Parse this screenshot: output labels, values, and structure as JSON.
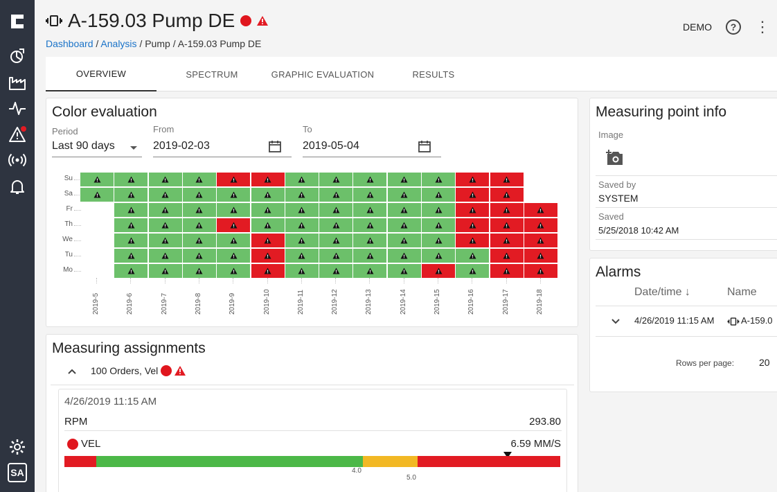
{
  "header": {
    "title": "A-159.03 Pump DE",
    "breadcrumb": {
      "dashboard": "Dashboard",
      "sep1": "/",
      "analysis": "Analysis",
      "sep2": "/",
      "pump": "Pump",
      "sep3": "/",
      "current": "A-159.03 Pump DE"
    },
    "demo_label": "DEMO",
    "help_label": "?"
  },
  "colors": {
    "red": "#e21b23",
    "green": "#6cc06a",
    "amber": "#f2b824",
    "bar_green": "#4cb848",
    "link": "#1a73c8",
    "sidebar": "#2e3440"
  },
  "tabs": [
    {
      "label": "OVERVIEW",
      "active": true
    },
    {
      "label": "SPECTRUM",
      "active": false
    },
    {
      "label": "GRAPHIC EVALUATION",
      "active": false
    },
    {
      "label": "RESULTS",
      "active": false
    }
  ],
  "color_evaluation": {
    "title": "Color evaluation",
    "period_label": "Period",
    "period_value": "Last 90 days",
    "from_label": "From",
    "from_value": "2019-02-03",
    "to_label": "To",
    "to_value": "2019-05-04",
    "days": [
      "Su",
      "Sa",
      "Fr",
      "Th",
      "We",
      "Tu",
      "Mo"
    ],
    "weeks": [
      "2019-5",
      "2019-6",
      "2019-7",
      "2019-8",
      "2019-9",
      "2019-10",
      "2019-11",
      "2019-12",
      "2019-13",
      "2019-14",
      "2019-15",
      "2019-16",
      "2019-17",
      "2019-18"
    ],
    "cells": [
      [
        "g",
        "g",
        "g",
        "g",
        "r",
        "r",
        "g",
        "g",
        "g",
        "g",
        "g",
        "r",
        "r",
        ""
      ],
      [
        "g",
        "g",
        "g",
        "g",
        "g",
        "g",
        "g",
        "g",
        "g",
        "g",
        "g",
        "r",
        "r",
        ""
      ],
      [
        "",
        "g",
        "g",
        "g",
        "g",
        "g",
        "g",
        "g",
        "g",
        "g",
        "g",
        "r",
        "r",
        "r"
      ],
      [
        "",
        "g",
        "g",
        "g",
        "r",
        "g",
        "g",
        "g",
        "g",
        "g",
        "g",
        "r",
        "r",
        "r"
      ],
      [
        "",
        "g",
        "g",
        "g",
        "g",
        "r",
        "g",
        "g",
        "g",
        "g",
        "g",
        "r",
        "r",
        "r"
      ],
      [
        "",
        "g",
        "g",
        "g",
        "g",
        "r",
        "g",
        "g",
        "g",
        "g",
        "g",
        "g",
        "r",
        "r"
      ],
      [
        "",
        "g",
        "g",
        "g",
        "g",
        "r",
        "g",
        "g",
        "g",
        "g",
        "r",
        "g",
        "r",
        "r"
      ]
    ]
  },
  "measuring_assignments": {
    "title": "Measuring assignments",
    "group_label": "100 Orders, Vel",
    "measurement": {
      "time": "4/26/2019 11:15 AM",
      "rpm_label": "RPM",
      "rpm_value": "293.80",
      "vel_label": "VEL",
      "vel_value": "6.59 MM/S",
      "threshold_1": "4.0",
      "threshold_2": "5.0"
    }
  },
  "measuring_point_info": {
    "title": "Measuring point info",
    "image_label": "Image",
    "saved_by_label": "Saved by",
    "saved_by_value": "SYSTEM",
    "saved_label": "Saved",
    "saved_value": "5/25/2018 10:42 AM"
  },
  "alarms": {
    "title": "Alarms",
    "col_datetime": "Date/time",
    "sort_arrow": "↓",
    "col_name": "Name",
    "rows": [
      {
        "datetime": "4/26/2019 11:15 AM",
        "name": "A-159.0"
      }
    ],
    "rows_per_page_label": "Rows per page:",
    "rows_per_page_value": "20"
  }
}
